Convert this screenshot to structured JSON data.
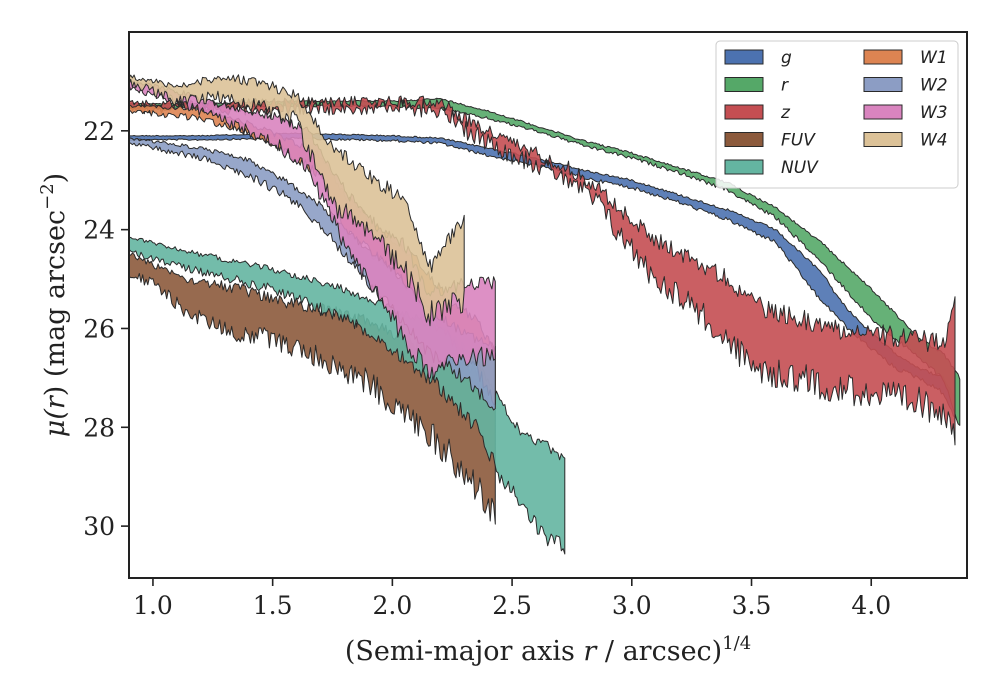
{
  "chart_data": {
    "type": "area",
    "xlabel_main": "(Semi-major axis ",
    "xlabel_var": "r",
    "xlabel_tail": " / arcsec)",
    "xlabel_exp": "1/4",
    "ylabel_main": "μ(",
    "ylabel_var": "r",
    "ylabel_tail": ") (mag arcsec",
    "ylabel_exp": "−2",
    "ylabel_close": ")",
    "xlim": [
      0.9,
      4.4
    ],
    "ylim": [
      31.05,
      20.0
    ],
    "y_inverted": true,
    "xticks": [
      1.0,
      1.5,
      2.0,
      2.5,
      3.0,
      3.5,
      4.0
    ],
    "xtick_labels": [
      "1.0",
      "1.5",
      "2.0",
      "2.5",
      "3.0",
      "3.5",
      "4.0"
    ],
    "yticks": [
      22,
      24,
      26,
      28,
      30
    ],
    "ytick_labels": [
      "22",
      "24",
      "26",
      "28",
      "30"
    ],
    "grid": false,
    "legend_position": "top-right",
    "series": [
      {
        "name": "g",
        "color": "#4c72b0",
        "points": [
          [
            0.9,
            22.1,
            22.18
          ],
          [
            1.2,
            22.1,
            22.18
          ],
          [
            1.6,
            22.05,
            22.15
          ],
          [
            2.0,
            22.1,
            22.2
          ],
          [
            2.2,
            22.15,
            22.25
          ],
          [
            2.4,
            22.35,
            22.5
          ],
          [
            2.6,
            22.55,
            22.7
          ],
          [
            2.8,
            22.8,
            22.95
          ],
          [
            3.0,
            23.0,
            23.15
          ],
          [
            3.2,
            23.3,
            23.45
          ],
          [
            3.4,
            23.6,
            23.8
          ],
          [
            3.6,
            24.0,
            24.25
          ],
          [
            3.8,
            24.9,
            25.5
          ],
          [
            3.85,
            25.3,
            25.7
          ],
          [
            3.9,
            25.6,
            26.0
          ],
          [
            4.0,
            26.1,
            26.4
          ],
          [
            4.1,
            26.5,
            26.8
          ],
          [
            4.2,
            26.8,
            27.0
          ],
          [
            4.3,
            27.0,
            27.3
          ],
          [
            4.35,
            27.4,
            27.8
          ]
        ],
        "jitter": 0.06
      },
      {
        "name": "r",
        "color": "#55a868",
        "points": [
          [
            0.9,
            21.45,
            21.55
          ],
          [
            1.2,
            21.45,
            21.52
          ],
          [
            1.6,
            21.4,
            21.5
          ],
          [
            2.0,
            21.4,
            21.5
          ],
          [
            2.2,
            21.35,
            21.55
          ],
          [
            2.4,
            21.6,
            21.75
          ],
          [
            2.6,
            21.9,
            22.0
          ],
          [
            2.8,
            22.2,
            22.3
          ],
          [
            3.0,
            22.45,
            22.55
          ],
          [
            3.2,
            22.75,
            22.85
          ],
          [
            3.4,
            23.05,
            23.2
          ],
          [
            3.6,
            23.55,
            23.75
          ],
          [
            3.8,
            24.3,
            24.7
          ],
          [
            4.0,
            25.2,
            25.8
          ],
          [
            4.1,
            25.7,
            26.2
          ],
          [
            4.2,
            26.2,
            26.6
          ],
          [
            4.3,
            26.5,
            27.0
          ],
          [
            4.37,
            27.0,
            28.0
          ]
        ],
        "jitter": 0.06
      },
      {
        "name": "z",
        "color": "#c44e52",
        "points": [
          [
            0.9,
            21.45,
            21.55
          ],
          [
            1.2,
            21.45,
            21.55
          ],
          [
            1.6,
            21.42,
            21.52
          ],
          [
            2.0,
            21.4,
            21.5
          ],
          [
            2.2,
            21.4,
            21.55
          ],
          [
            2.3,
            21.75,
            21.95
          ],
          [
            2.5,
            22.25,
            22.45
          ],
          [
            2.7,
            22.65,
            22.85
          ],
          [
            2.85,
            23.1,
            23.4
          ],
          [
            2.95,
            23.6,
            24.1
          ],
          [
            3.1,
            24.2,
            25.0
          ],
          [
            3.25,
            24.6,
            25.5
          ],
          [
            3.4,
            25.0,
            26.3
          ],
          [
            3.55,
            25.6,
            26.9
          ],
          [
            3.7,
            25.8,
            27.0
          ],
          [
            3.85,
            26.0,
            27.2
          ],
          [
            4.0,
            26.1,
            27.3
          ],
          [
            4.15,
            26.2,
            27.5
          ],
          [
            4.3,
            26.3,
            27.6
          ],
          [
            4.35,
            25.5,
            28.0
          ]
        ],
        "jitter": 0.45
      },
      {
        "name": "FUV",
        "color": "#8c5a3c",
        "points": [
          [
            0.9,
            24.5,
            24.9
          ],
          [
            1.0,
            24.7,
            25.1
          ],
          [
            1.15,
            25.0,
            25.7
          ],
          [
            1.35,
            25.2,
            26.1
          ],
          [
            1.5,
            25.4,
            26.2
          ],
          [
            1.7,
            25.6,
            26.6
          ],
          [
            1.9,
            25.9,
            27.1
          ],
          [
            2.1,
            26.3,
            27.9
          ],
          [
            2.25,
            26.5,
            28.6
          ],
          [
            2.35,
            26.9,
            29.2
          ],
          [
            2.43,
            27.5,
            29.8
          ]
        ],
        "jitter": 0.45
      },
      {
        "name": "NUV",
        "color": "#64b5a1",
        "points": [
          [
            0.9,
            24.15,
            24.45
          ],
          [
            1.2,
            24.5,
            24.85
          ],
          [
            1.5,
            24.8,
            25.2
          ],
          [
            1.8,
            25.2,
            25.8
          ],
          [
            2.0,
            25.6,
            26.4
          ],
          [
            2.2,
            26.0,
            27.2
          ],
          [
            2.35,
            26.6,
            28.0
          ],
          [
            2.45,
            27.5,
            29.0
          ],
          [
            2.55,
            28.2,
            29.6
          ],
          [
            2.65,
            28.4,
            30.3
          ],
          [
            2.72,
            28.6,
            30.4
          ]
        ],
        "jitter": 0.25
      },
      {
        "name": "W1",
        "color": "#dd8452",
        "points": [
          [
            0.9,
            21.5,
            21.6
          ],
          [
            1.2,
            21.55,
            21.75
          ],
          [
            1.4,
            21.85,
            22.05
          ],
          [
            1.55,
            22.15,
            22.4
          ],
          [
            1.7,
            22.5,
            22.9
          ],
          [
            1.8,
            23.3,
            24.0
          ],
          [
            1.95,
            24.0,
            24.6
          ],
          [
            2.1,
            24.6,
            25.3
          ],
          [
            2.25,
            25.5,
            26.3
          ],
          [
            2.35,
            25.8,
            26.8
          ],
          [
            2.43,
            26.5,
            27.6
          ]
        ],
        "jitter": 0.2
      },
      {
        "name": "W2",
        "color": "#8c9dc4",
        "points": [
          [
            0.9,
            22.15,
            22.25
          ],
          [
            1.2,
            22.35,
            22.55
          ],
          [
            1.4,
            22.6,
            22.9
          ],
          [
            1.55,
            23.0,
            23.3
          ],
          [
            1.7,
            23.5,
            23.9
          ],
          [
            1.85,
            24.2,
            24.8
          ],
          [
            2.0,
            24.8,
            25.6
          ],
          [
            2.15,
            25.6,
            26.5
          ],
          [
            2.3,
            26.1,
            27.0
          ],
          [
            2.43,
            26.4,
            27.6
          ]
        ],
        "jitter": 0.2
      },
      {
        "name": "W3",
        "color": "#d984bf",
        "points": [
          [
            0.9,
            21.0,
            21.1
          ],
          [
            1.1,
            21.2,
            21.4
          ],
          [
            1.3,
            21.5,
            21.8
          ],
          [
            1.5,
            21.7,
            22.2
          ],
          [
            1.65,
            22.0,
            22.8
          ],
          [
            1.8,
            23.2,
            24.3
          ],
          [
            1.95,
            24.0,
            25.4
          ],
          [
            2.05,
            24.3,
            26.2
          ],
          [
            2.15,
            25.3,
            26.9
          ],
          [
            2.3,
            25.1,
            26.6
          ],
          [
            2.43,
            25.1,
            26.5
          ]
        ],
        "jitter": 0.3
      },
      {
        "name": "W4",
        "color": "#dcc298",
        "points": [
          [
            0.9,
            20.9,
            21.0
          ],
          [
            1.1,
            21.1,
            21.4
          ],
          [
            1.3,
            20.9,
            21.3
          ],
          [
            1.5,
            21.1,
            21.6
          ],
          [
            1.6,
            21.3,
            21.8
          ],
          [
            1.75,
            22.3,
            23.5
          ],
          [
            1.9,
            22.9,
            24.0
          ],
          [
            2.05,
            23.4,
            24.8
          ],
          [
            2.15,
            24.8,
            25.7
          ],
          [
            2.3,
            23.8,
            25.4
          ]
        ],
        "jitter": 0.35
      }
    ]
  }
}
